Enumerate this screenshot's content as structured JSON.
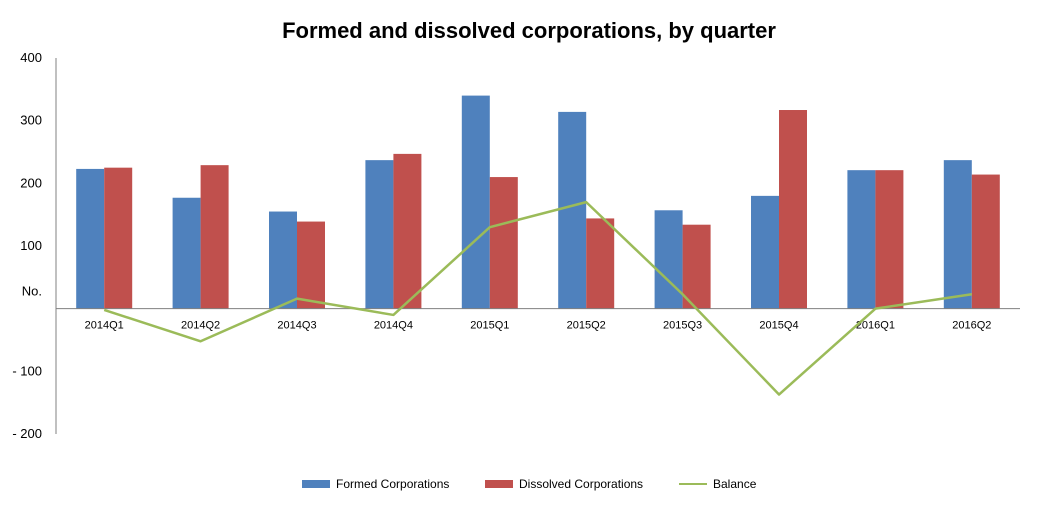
{
  "chart_data": {
    "type": "bar",
    "title": "Formed and dissolved corporations, by quarter",
    "ylabel": "No.",
    "xlabel": "",
    "ylim": [
      -200,
      400
    ],
    "yticks": [
      {
        "value": 400,
        "label": "400"
      },
      {
        "value": 300,
        "label": "300"
      },
      {
        "value": 200,
        "label": "200"
      },
      {
        "value": 100,
        "label": "100"
      },
      {
        "value": -100,
        "label": "- 100"
      },
      {
        "value": -200,
        "label": "- 200"
      }
    ],
    "categories": [
      "2014Q1",
      "2014Q2",
      "2014Q3",
      "2014Q4",
      "2015Q1",
      "2015Q2",
      "2015Q3",
      "2015Q4",
      "2016Q1",
      "2016Q2"
    ],
    "series": [
      {
        "name": "Formed Corporations",
        "kind": "bar",
        "color": "#4F81BD",
        "values": [
          223,
          177,
          155,
          237,
          340,
          314,
          157,
          180,
          221,
          237
        ]
      },
      {
        "name": "Dissolved Corporations",
        "kind": "bar",
        "color": "#C0504D",
        "values": [
          225,
          229,
          139,
          247,
          210,
          144,
          134,
          317,
          221,
          214
        ]
      },
      {
        "name": "Balance",
        "kind": "line",
        "color": "#9BBB59",
        "values": [
          -2,
          -52,
          16,
          -10,
          130,
          170,
          23,
          -137,
          0,
          23
        ]
      }
    ],
    "legend_position": "bottom",
    "grid": false
  }
}
